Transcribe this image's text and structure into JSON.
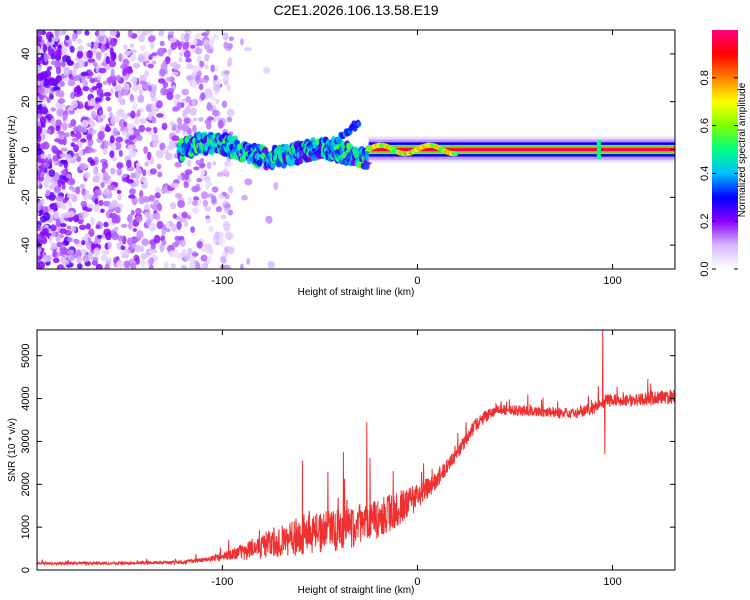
{
  "chart_data": [
    {
      "type": "heatmap",
      "title": "C2E1.2026.106.13.58.E19",
      "xlabel": "Height of straight line (km)",
      "ylabel": "Frequency (Hz)",
      "xlim": [
        -195,
        132
      ],
      "ylim": [
        -50,
        50
      ],
      "xticks": [
        -100,
        0,
        100
      ],
      "xtick_labels": [
        "-100",
        "0",
        "100"
      ],
      "yticks": [
        -40,
        -20,
        0,
        20,
        40
      ],
      "ytick_labels": [
        "-40",
        "-20",
        "0",
        "20",
        "40"
      ],
      "colorbar": {
        "label": "Normalized spectral amplitude",
        "range": [
          0,
          1
        ],
        "ticks": [
          0,
          0.2,
          0.4,
          0.6,
          0.8
        ],
        "tick_labels": [
          "0.0",
          "0.2",
          "0.4",
          "0.6",
          "0.8"
        ],
        "colors": [
          "#ffffff",
          "#d7b8ff",
          "#8a00ff",
          "#0000ff",
          "#00bfff",
          "#00ff80",
          "#80ff00",
          "#ffff00",
          "#ff8000",
          "#ff0000",
          "#ff0080"
        ]
      },
      "features": [
        {
          "name": "noise",
          "x_range": [
            -195,
            -95
          ],
          "freq_range": [
            -50,
            50
          ],
          "amplitude": 0.2
        },
        {
          "name": "ridge-wavy",
          "x_range": [
            -122,
            -25
          ],
          "freq_center": [
            0,
            -6,
            3
          ],
          "amplitude": 0.4
        },
        {
          "name": "ridge-steady",
          "x_range": [
            -25,
            132
          ],
          "freq_center": 0,
          "amplitude": 0.95
        },
        {
          "name": "spike",
          "x": 93,
          "freq_range": [
            -4,
            4
          ],
          "amplitude": 0.5
        }
      ]
    },
    {
      "type": "line",
      "xlabel": "Height of straight line (km)",
      "ylabel": "SNR (10 * v/v)",
      "xlim": [
        -195,
        132
      ],
      "ylim": [
        0,
        5600
      ],
      "xticks": [
        -100,
        0,
        100
      ],
      "xtick_labels": [
        "-100",
        "0",
        "100"
      ],
      "yticks": [
        0,
        1000,
        2000,
        3000,
        4000,
        5000
      ],
      "ytick_labels": [
        "0",
        "1000",
        "2000",
        "3000",
        "4000",
        "5000"
      ],
      "series": [
        {
          "name": "SNR",
          "color": "#ee3030",
          "trend_x": [
            -195,
            -150,
            -120,
            -100,
            -80,
            -60,
            -45,
            -30,
            -15,
            0,
            10,
            20,
            30,
            40,
            60,
            80,
            92,
            96,
            110,
            132
          ],
          "trend_y": [
            150,
            160,
            180,
            300,
            550,
            800,
            900,
            1050,
            1300,
            1700,
            2100,
            2700,
            3400,
            3750,
            3700,
            3650,
            3800,
            3950,
            3950,
            4050
          ],
          "noise_y": [
            30,
            30,
            40,
            80,
            300,
            450,
            500,
            500,
            450,
            300,
            200,
            150,
            150,
            130,
            120,
            120,
            150,
            150,
            150,
            180
          ],
          "spikes": [
            {
              "x": -59,
              "y": 2550
            },
            {
              "x": -38,
              "y": 2750
            },
            {
              "x": -26,
              "y": 3450
            },
            {
              "x": 95,
              "y": 5600
            },
            {
              "x": 96,
              "y": 2700
            }
          ]
        }
      ]
    }
  ]
}
